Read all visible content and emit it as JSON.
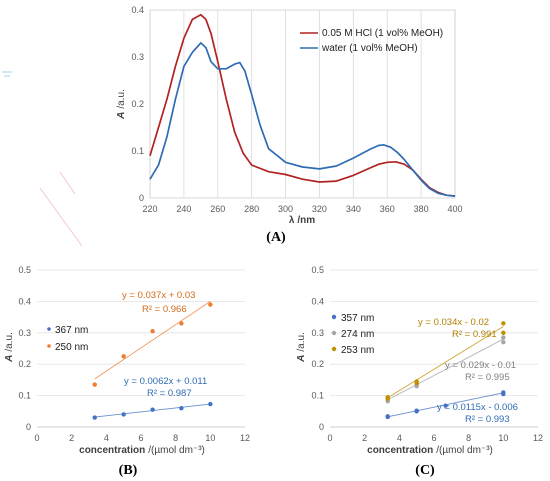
{
  "chart_data": [
    {
      "type": "line",
      "panel": "(A)",
      "xlabel_var": "λ",
      "xlabel_unit": "/nm",
      "ylabel_var": "A",
      "ylabel_unit": "/a.u.",
      "xlim": [
        220,
        400
      ],
      "ylim": [
        0,
        0.4
      ],
      "xticks": [
        220,
        240,
        260,
        280,
        300,
        320,
        340,
        360,
        380,
        400
      ],
      "yticks": [
        0,
        0.1,
        0.2,
        0.3,
        0.4
      ],
      "grid": "vertical",
      "legend": "top-right",
      "series": [
        {
          "name": "0.05 M HCl (1 vol% MeOH)",
          "color": "#b22222",
          "x": [
            220,
            225,
            230,
            235,
            240,
            245,
            250,
            253,
            256,
            260,
            265,
            270,
            275,
            280,
            290,
            300,
            310,
            320,
            330,
            340,
            350,
            355,
            360,
            365,
            370,
            375,
            380,
            385,
            390,
            395,
            400
          ],
          "y": [
            0.09,
            0.15,
            0.21,
            0.28,
            0.34,
            0.38,
            0.39,
            0.38,
            0.35,
            0.29,
            0.21,
            0.14,
            0.095,
            0.07,
            0.056,
            0.05,
            0.04,
            0.034,
            0.036,
            0.048,
            0.064,
            0.072,
            0.076,
            0.077,
            0.072,
            0.06,
            0.04,
            0.022,
            0.012,
            0.006,
            0.004
          ]
        },
        {
          "name": "water (1 vol% MeOH)",
          "color": "#2e6db4",
          "x": [
            220,
            225,
            230,
            235,
            240,
            245,
            250,
            253,
            256,
            260,
            265,
            270,
            273,
            276,
            280,
            285,
            290,
            300,
            310,
            320,
            330,
            340,
            350,
            355,
            358,
            362,
            366,
            370,
            375,
            380,
            385,
            390,
            395,
            400
          ],
          "y": [
            0.04,
            0.07,
            0.13,
            0.21,
            0.28,
            0.31,
            0.33,
            0.32,
            0.29,
            0.275,
            0.275,
            0.285,
            0.288,
            0.27,
            0.22,
            0.155,
            0.105,
            0.076,
            0.066,
            0.062,
            0.068,
            0.085,
            0.104,
            0.112,
            0.113,
            0.108,
            0.097,
            0.082,
            0.06,
            0.038,
            0.02,
            0.01,
            0.006,
            0.004
          ]
        }
      ]
    },
    {
      "type": "scatter",
      "panel": "(B)",
      "xlabel_var": "concentration",
      "xlabel_unit": "/(µmol dm⁻³)",
      "ylabel_var": "A",
      "ylabel_unit": "/a.u.",
      "xlim": [
        0,
        12
      ],
      "ylim": [
        0,
        0.5
      ],
      "xticks": [
        0,
        2,
        4,
        6,
        8,
        10,
        12
      ],
      "yticks": [
        0,
        0.1,
        0.2,
        0.3,
        0.4,
        0.5
      ],
      "grid": "horizontal",
      "legend": "left",
      "series": [
        {
          "name": "367 nm",
          "color": "#4472c4",
          "x": [
            3.33,
            5,
            6.67,
            8.33,
            10
          ],
          "y": [
            0.03,
            0.04,
            0.055,
            0.06,
            0.073
          ],
          "fit": {
            "slope": 0.0062,
            "intercept": 0.011
          },
          "equation": "y = 0.0062x + 0.011",
          "r2": "R² = 0.987"
        },
        {
          "name": "250 nm",
          "color": "#ed7d31",
          "x": [
            3.33,
            5,
            6.67,
            8.33,
            10
          ],
          "y": [
            0.135,
            0.225,
            0.305,
            0.33,
            0.39
          ],
          "fit": {
            "slope": 0.037,
            "intercept": 0.03
          },
          "equation": "y = 0.037x + 0.03",
          "r2": "R² = 0.966"
        }
      ]
    },
    {
      "type": "scatter",
      "panel": "(C)",
      "xlabel_var": "concentration",
      "xlabel_unit": "/(µmol dm⁻³)",
      "ylabel_var": "A",
      "ylabel_unit": "/a.u.",
      "xlim": [
        0,
        12
      ],
      "ylim": [
        0,
        0.5
      ],
      "xticks": [
        0,
        2,
        4,
        6,
        8,
        10,
        12
      ],
      "yticks": [
        0,
        0.1,
        0.2,
        0.3,
        0.4,
        0.5
      ],
      "grid": "horizontal",
      "legend": "left",
      "series": [
        {
          "name": "357 nm",
          "color": "#4472c4",
          "x": [
            3.33,
            3.33,
            5,
            5,
            6.67,
            10,
            10
          ],
          "y": [
            0.032,
            0.034,
            0.05,
            0.052,
            0.068,
            0.105,
            0.11
          ],
          "fit": {
            "slope": 0.0115,
            "intercept": -0.006
          },
          "equation": "y = 0.0115x - 0.006",
          "r2": "R² = 0.993"
        },
        {
          "name": "274 nm",
          "color": "#a5a5a5",
          "x": [
            3.33,
            3.33,
            5,
            5,
            10,
            10
          ],
          "y": [
            0.082,
            0.086,
            0.13,
            0.135,
            0.27,
            0.285
          ],
          "fit": {
            "slope": 0.029,
            "intercept": -0.01
          },
          "equation": "y = 0.029x - 0.01",
          "r2": "R² = 0.995"
        },
        {
          "name": "253 nm",
          "color": "#c09000",
          "x": [
            3.33,
            3.33,
            5,
            5,
            10,
            10
          ],
          "y": [
            0.09,
            0.095,
            0.14,
            0.145,
            0.3,
            0.33
          ],
          "fit": {
            "slope": 0.034,
            "intercept": -0.02
          },
          "equation": "y = 0.034x - 0.02",
          "r2": "R² = 0.991"
        }
      ]
    }
  ]
}
